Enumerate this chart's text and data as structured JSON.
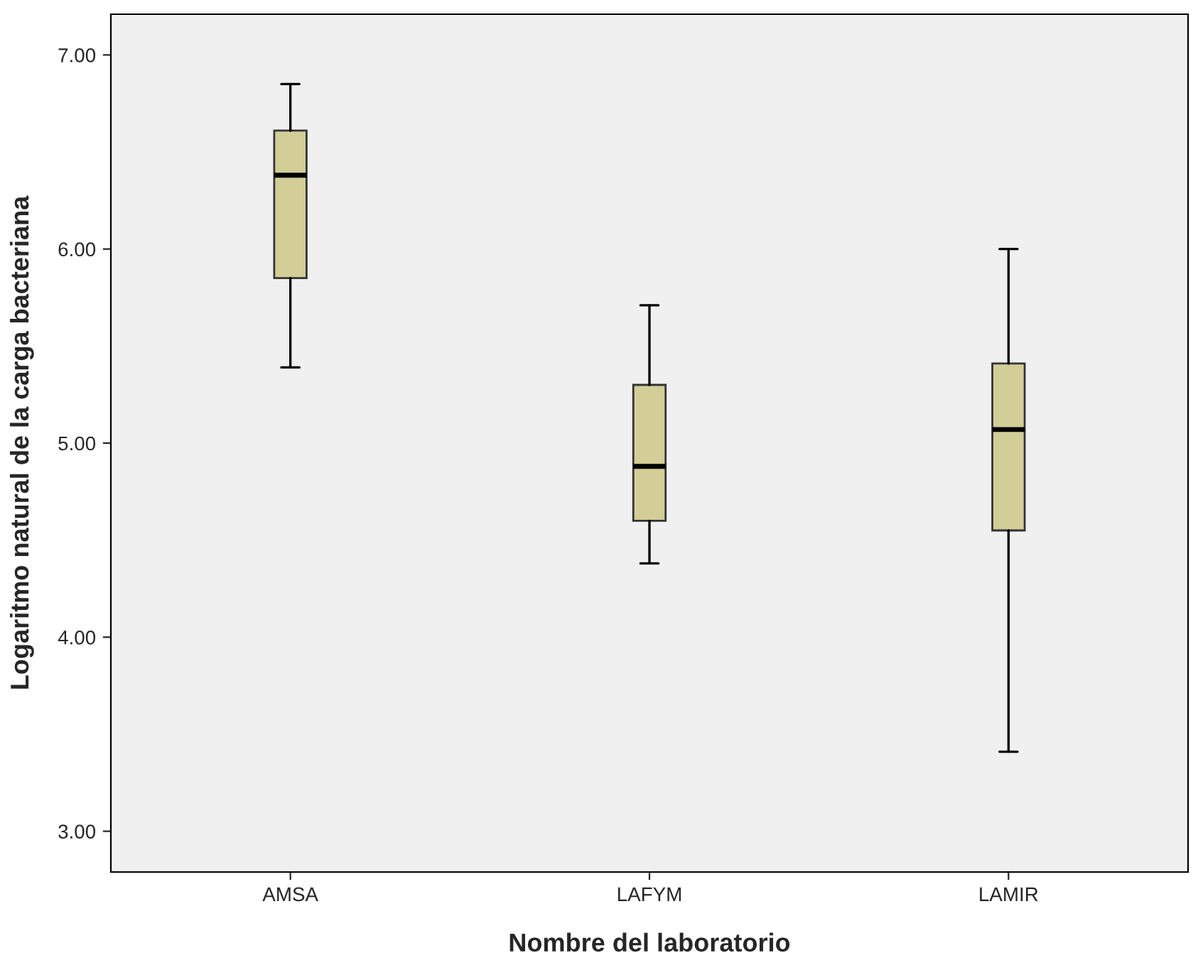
{
  "chart_data": {
    "type": "box",
    "xlabel": "Nombre del laboratorio",
    "ylabel": "Logaritmo natural de la carga bacteriana",
    "categories": [
      "AMSA",
      "LAFYM",
      "LAMIR"
    ],
    "boxes": [
      {
        "low": 5.39,
        "q1": 5.85,
        "median": 6.38,
        "q3": 6.61,
        "high": 6.85
      },
      {
        "low": 4.38,
        "q1": 4.6,
        "median": 4.88,
        "q3": 5.3,
        "high": 5.71
      },
      {
        "low": 3.41,
        "q1": 4.55,
        "median": 5.07,
        "q3": 5.41,
        "high": 6.0
      }
    ],
    "color": "#d3ce98",
    "ylim": [
      2.79,
      7.21
    ],
    "yticks": [
      {
        "value": 3,
        "label": "3.00"
      },
      {
        "value": 4,
        "label": "4.00"
      },
      {
        "value": 5,
        "label": "5.00"
      },
      {
        "value": 6,
        "label": "6.00"
      },
      {
        "value": 7,
        "label": "7.00"
      }
    ],
    "grid": false
  }
}
